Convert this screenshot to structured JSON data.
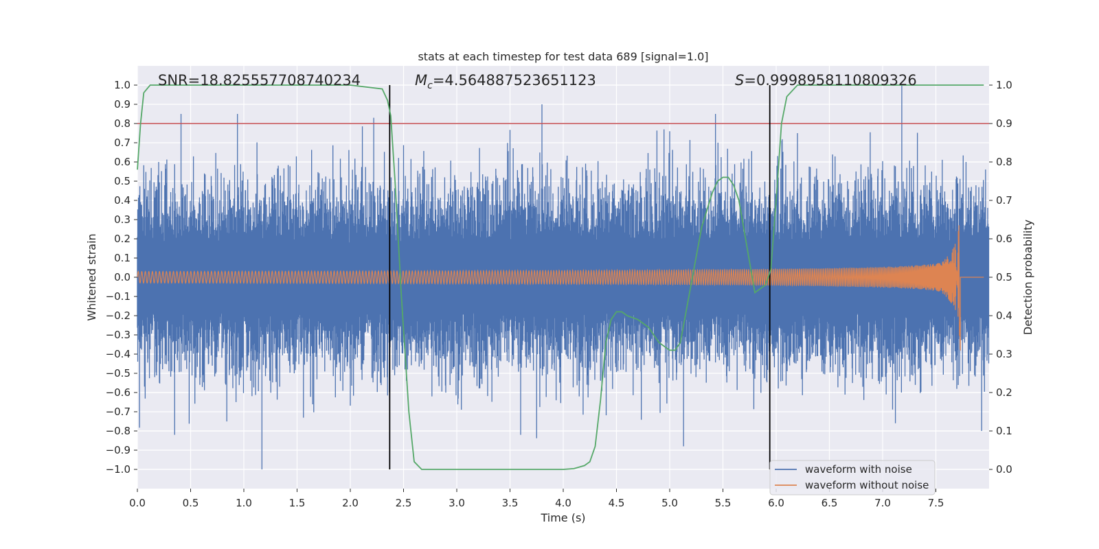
{
  "chart_data": {
    "type": "line",
    "title": "stats at each timestep for test data 689 [signal=1.0]",
    "xlabel": "Time (s)",
    "ylabel": "Whitened strain",
    "ylabel_right": "Detection probability",
    "xlim": [
      0.0,
      8.0
    ],
    "ylim": [
      -1.1,
      1.1
    ],
    "ylim_right": [
      -0.05,
      1.05
    ],
    "x_ticks": [
      0.0,
      0.5,
      1.0,
      1.5,
      2.0,
      2.5,
      3.0,
      3.5,
      4.0,
      4.5,
      5.0,
      5.5,
      6.0,
      6.5,
      7.0,
      7.5
    ],
    "x_tick_labels": [
      "0.0",
      "0.5",
      "1.0",
      "1.5",
      "2.0",
      "2.5",
      "3.0",
      "3.5",
      "4.0",
      "4.5",
      "5.0",
      "5.5",
      "6.0",
      "6.5",
      "7.0",
      "7.5"
    ],
    "y_ticks": [
      1.0,
      0.9,
      0.8,
      0.7,
      0.6,
      0.5,
      0.4,
      0.3,
      0.2,
      0.1,
      0.0,
      -0.1,
      -0.2,
      -0.3,
      -0.4,
      -0.5,
      -0.6,
      -0.7,
      -0.8,
      -0.9,
      -1.0
    ],
    "y_tick_labels": [
      "1.0",
      "0.9",
      "0.8",
      "0.7",
      "0.6",
      "0.5",
      "0.4",
      "0.3",
      "0.2",
      "0.1",
      "0.0",
      "−0.1",
      "−0.2",
      "−0.3",
      "−0.4",
      "−0.5",
      "−0.6",
      "−0.7",
      "−0.8",
      "−0.9",
      "−1.0"
    ],
    "y_ticks_right": [
      1.0,
      0.9,
      0.8,
      0.7,
      0.6,
      0.5,
      0.4,
      0.3,
      0.2,
      0.1,
      0.0
    ],
    "y_tick_labels_right": [
      "1.0",
      "0.9",
      "0.8",
      "0.7",
      "0.6",
      "0.5",
      "0.4",
      "0.3",
      "0.2",
      "0.1",
      "0.0"
    ],
    "grid": true,
    "stats": {
      "snr_label": "SNR=18.825557708740234",
      "mc_symbol": "M",
      "mc_subscript": "c",
      "mc_value": "=4.564887523651123",
      "s_symbol": "S",
      "s_value": "=0.9998958110809326"
    },
    "threshold": {
      "value": 0.9,
      "axis": "right",
      "color": "#c44e52"
    },
    "vertical_markers": [
      2.37,
      5.94
    ],
    "series": [
      {
        "name": "waveform with noise",
        "color": "#4c72b0",
        "axis": "left",
        "noise_std": 0.17,
        "t_range": [
          0.0,
          8.0
        ],
        "extreme_peaks": [
          [
            0.41,
            0.85
          ],
          [
            0.94,
            0.85
          ],
          [
            2.22,
            0.83
          ],
          [
            3.8,
            0.9
          ],
          [
            5.43,
            0.85
          ],
          [
            7.18,
            1.0
          ],
          [
            5.0,
            0.76
          ],
          [
            6.2,
            0.75
          ],
          [
            1.17,
            -1.0
          ],
          [
            0.35,
            -0.82
          ],
          [
            3.6,
            -0.82
          ],
          [
            5.13,
            -0.88
          ],
          [
            7.12,
            -0.76
          ],
          [
            7.93,
            -0.8
          ]
        ]
      },
      {
        "name": "waveform without noise",
        "color": "#dd8452",
        "axis": "left",
        "t_range": [
          0.0,
          7.73
        ],
        "amplitude_start": 0.03,
        "amplitude_end": 0.45,
        "merger_time": 7.73,
        "ringdown_end": 7.73
      },
      {
        "name": "detection probability",
        "color": "#55a868",
        "axis": "right",
        "x": [
          0.0,
          0.03,
          0.06,
          0.12,
          0.3,
          1.0,
          2.0,
          2.3,
          2.35,
          2.38,
          2.42,
          2.48,
          2.55,
          2.6,
          2.67,
          2.75,
          2.85,
          3.0,
          3.5,
          4.0,
          4.1,
          4.2,
          4.25,
          4.3,
          4.35,
          4.4,
          4.45,
          4.5,
          4.55,
          4.6,
          4.7,
          4.8,
          4.9,
          5.0,
          5.05,
          5.1,
          5.2,
          5.3,
          5.4,
          5.45,
          5.5,
          5.55,
          5.6,
          5.65,
          5.7,
          5.8,
          5.9,
          5.95,
          6.0,
          6.05,
          6.1,
          6.2,
          6.5,
          7.0,
          7.5,
          7.95
        ],
        "y": [
          0.78,
          0.9,
          0.98,
          1.0,
          1.0,
          1.0,
          1.0,
          0.99,
          0.96,
          0.92,
          0.75,
          0.45,
          0.15,
          0.02,
          0.0,
          0.0,
          0.0,
          0.0,
          0.0,
          0.0,
          0.002,
          0.01,
          0.02,
          0.06,
          0.18,
          0.33,
          0.39,
          0.41,
          0.41,
          0.4,
          0.39,
          0.37,
          0.33,
          0.31,
          0.31,
          0.33,
          0.48,
          0.63,
          0.72,
          0.75,
          0.76,
          0.76,
          0.74,
          0.7,
          0.62,
          0.46,
          0.48,
          0.52,
          0.7,
          0.9,
          0.97,
          1.0,
          1.0,
          1.0,
          1.0,
          1.0
        ]
      }
    ],
    "legend": {
      "position": "lower-right",
      "entries": [
        "waveform with noise",
        "waveform without noise"
      ]
    }
  }
}
